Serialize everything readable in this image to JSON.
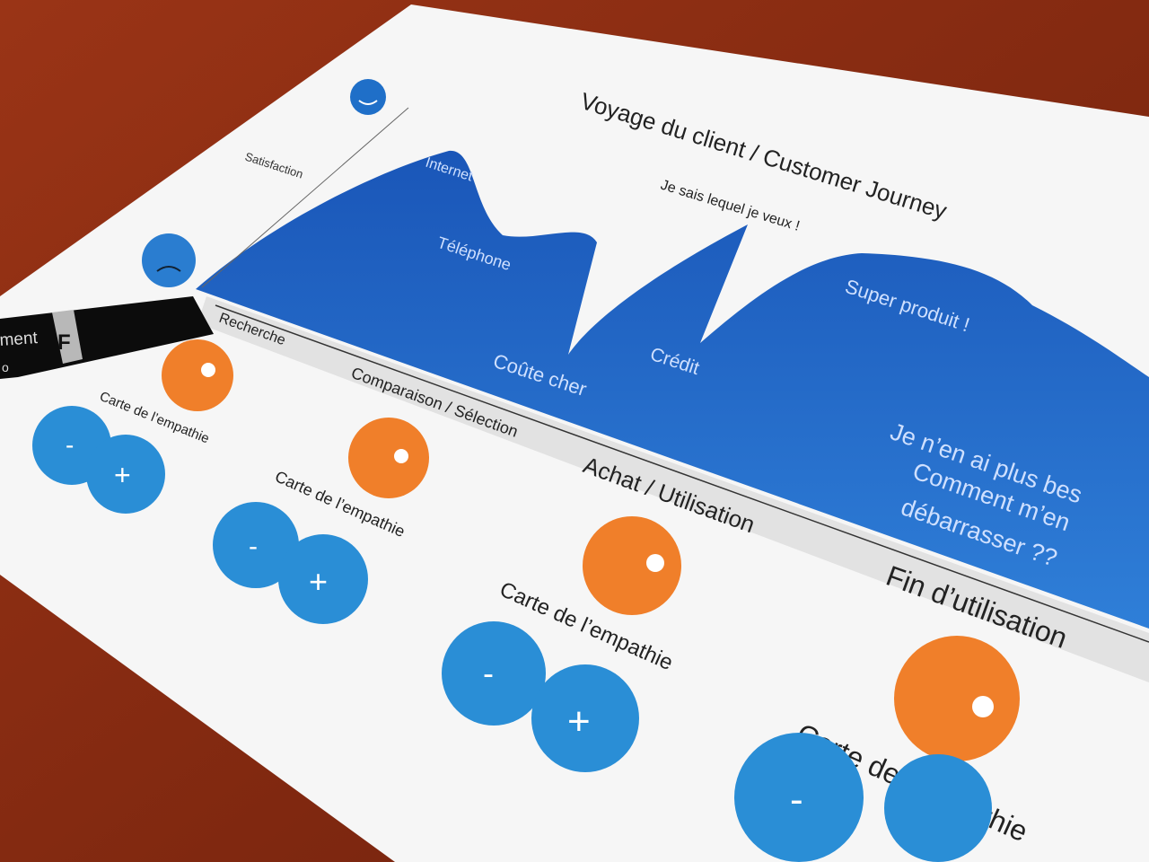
{
  "title": "Voyage du client / Customer Journey",
  "axis_label": "Satisfaction",
  "curve_labels": [
    "Internet",
    "Téléphone",
    "Coûte cher",
    "Je sais lequel je veux !",
    "Crédit",
    "Super produit !"
  ],
  "end_text": [
    "Je n’en ai plus bes",
    "Comment m’en",
    "débarrasser ??"
  ],
  "stages": [
    "Recherche",
    "Comparaison / Sélection",
    "Achat / Utilisation",
    "Fin d’utilisation"
  ],
  "empathy_label": "Carte de l’empathie",
  "minus": "-",
  "plus": "+",
  "pen": {
    "text": "ment",
    "badge": "F",
    "text2": "o"
  },
  "colors": {
    "table": "#8a2a12",
    "paper": "#f6f6f6",
    "wave": "#1f5fbf",
    "dot_blue": "#2a8ed6",
    "dot_orange": "#f07f2a"
  }
}
